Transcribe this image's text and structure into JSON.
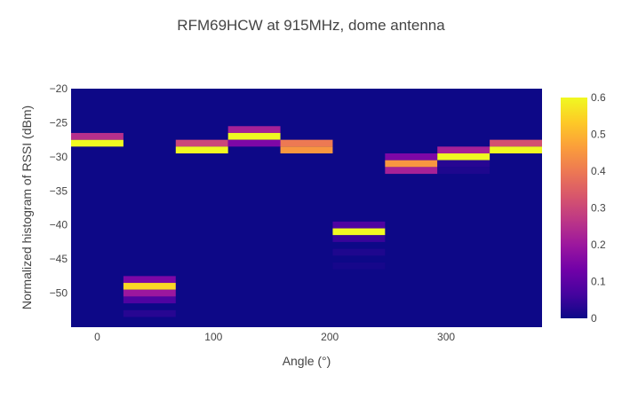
{
  "chart_data": {
    "type": "heatmap",
    "title": "RFM69HCW at 915MHz, dome antenna",
    "xlabel": "Angle (°)",
    "ylabel": "Normalized histogram of RSSI (dBm)",
    "xlim": [
      -22.5,
      382.5
    ],
    "ylim": [
      -55,
      -20
    ],
    "x_ticks": [
      0,
      100,
      200,
      300
    ],
    "y_ticks": [
      -20,
      -25,
      -30,
      -35,
      -40,
      -45,
      -50
    ],
    "colorbar": {
      "min": 0,
      "max": 0.6,
      "ticks": [
        0,
        0.1,
        0.2,
        0.3,
        0.4,
        0.5,
        0.6
      ],
      "colors": [
        "#0d0887",
        "#46039f",
        "#7201a8",
        "#9c179e",
        "#bd3786",
        "#d8576b",
        "#ed7953",
        "#fb9f3a",
        "#fdca26",
        "#f0f921"
      ]
    },
    "background_value": 0,
    "columns": [
      {
        "angle": 0,
        "bins": [
          {
            "rssi": -28,
            "value": 0.6
          },
          {
            "rssi": -27,
            "value": 0.25
          }
        ]
      },
      {
        "angle": 45,
        "bins": [
          {
            "rssi": -48,
            "value": 0.15
          },
          {
            "rssi": -49,
            "value": 0.55
          },
          {
            "rssi": -50,
            "value": 0.2
          },
          {
            "rssi": -51,
            "value": 0.08
          },
          {
            "rssi": -53,
            "value": 0.03
          }
        ]
      },
      {
        "angle": 90,
        "bins": [
          {
            "rssi": -28,
            "value": 0.3
          },
          {
            "rssi": -29,
            "value": 0.6
          }
        ]
      },
      {
        "angle": 135,
        "bins": [
          {
            "rssi": -26,
            "value": 0.22
          },
          {
            "rssi": -27,
            "value": 0.6
          },
          {
            "rssi": -28,
            "value": 0.15
          }
        ]
      },
      {
        "angle": 180,
        "bins": [
          {
            "rssi": -28,
            "value": 0.4
          },
          {
            "rssi": -29,
            "value": 0.45
          }
        ]
      },
      {
        "angle": 225,
        "bins": [
          {
            "rssi": -40,
            "value": 0.08
          },
          {
            "rssi": -41,
            "value": 0.6
          },
          {
            "rssi": -42,
            "value": 0.05
          },
          {
            "rssi": -44,
            "value": 0.02
          },
          {
            "rssi": -46,
            "value": 0.01
          }
        ]
      },
      {
        "angle": 270,
        "bins": [
          {
            "rssi": -30,
            "value": 0.15
          },
          {
            "rssi": -31,
            "value": 0.45
          },
          {
            "rssi": -32,
            "value": 0.22
          }
        ]
      },
      {
        "angle": 315,
        "bins": [
          {
            "rssi": -29,
            "value": 0.22
          },
          {
            "rssi": -30,
            "value": 0.6
          },
          {
            "rssi": -31,
            "value": 0.03
          },
          {
            "rssi": -32,
            "value": 0.02
          }
        ]
      },
      {
        "angle": 360,
        "bins": [
          {
            "rssi": -28,
            "value": 0.32
          },
          {
            "rssi": -29,
            "value": 0.6
          }
        ]
      }
    ]
  }
}
